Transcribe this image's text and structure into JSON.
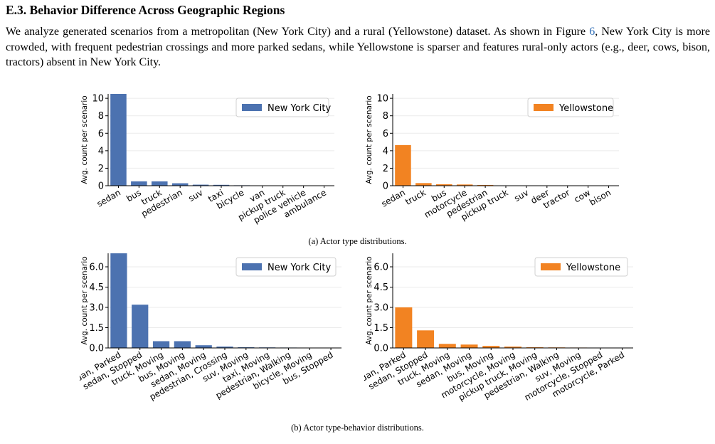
{
  "section": {
    "heading": "E.3. Behavior Difference Across Geographic Regions",
    "paragraph_before": "We analyze generated scenarios from a metropolitan (New York City) and a rural (Yellowstone) dataset. As shown in Figure ",
    "figure_ref": "6",
    "paragraph_after": ", New York City is more crowded, with frequent pedestrian crossings and more parked sedans, while Yellowstone is sparser and features rural-only actors (e.g., deer, cows, bison, tractors) absent in New York City."
  },
  "captions": {
    "a": "(a) Actor type distributions.",
    "b": "(b) Actor type-behavior distributions."
  },
  "colors": {
    "nyc": "#4c72b0",
    "yellowstone": "#f28322"
  },
  "chart_data": [
    {
      "type": "bar",
      "categories": [
        "sedan",
        "bus",
        "truck",
        "pedestrian",
        "suv",
        "taxi",
        "bicycle",
        "van",
        "pickup truck",
        "police vehicle",
        "ambulance"
      ],
      "values": [
        10.5,
        0.5,
        0.5,
        0.28,
        0.12,
        0.1,
        0.05,
        0.04,
        0.01,
        0.01,
        0.01
      ],
      "series_name": "New York City",
      "ylabel": "Avg. count per scenario",
      "ylim": [
        0,
        10.5
      ],
      "yticks": [
        0,
        2,
        4,
        6,
        8,
        10
      ],
      "ytick_labels": [
        "0",
        "2",
        "4",
        "6",
        "8",
        "10"
      ],
      "color": "#4c72b0",
      "legend": "top-right",
      "grid": true
    },
    {
      "type": "bar",
      "categories": [
        "sedan",
        "truck",
        "bus",
        "motorcycle",
        "pedestrian",
        "pickup truck",
        "suv",
        "deer",
        "tractor",
        "cow",
        "bison"
      ],
      "values": [
        4.65,
        0.3,
        0.17,
        0.14,
        0.08,
        0.04,
        0.03,
        0.01,
        0.01,
        0.01,
        0.01
      ],
      "series_name": "Yellowstone",
      "ylabel": "Avg. count per scenario",
      "ylim": [
        0,
        10.5
      ],
      "yticks": [
        0,
        2,
        4,
        6,
        8,
        10
      ],
      "ytick_labels": [
        "0",
        "2",
        "4",
        "6",
        "8",
        "10"
      ],
      "color": "#f28322",
      "legend": "top-right",
      "grid": true
    },
    {
      "type": "bar",
      "categories": [
        "sedan, Parked",
        "sedan, Stopped",
        "truck, Moving",
        "bus, Moving",
        "sedan, Moving",
        "pedestrian, Crossing",
        "suv, Moving",
        "taxi, Moving",
        "pedestrian, Walking",
        "bicycle, Moving",
        "bus, Stopped"
      ],
      "values": [
        7.0,
        3.2,
        0.5,
        0.5,
        0.2,
        0.1,
        0.05,
        0.04,
        0.03,
        0.02,
        0.02
      ],
      "series_name": "New York City",
      "ylabel": "Avg. count per scenario",
      "ylim": [
        0,
        7.0
      ],
      "yticks": [
        0,
        1.5,
        3,
        4.5,
        6
      ],
      "ytick_labels": [
        "0.0",
        "1.5",
        "3.0",
        "4.5",
        "6.0"
      ],
      "color": "#4c72b0",
      "legend": "top-right",
      "grid": true
    },
    {
      "type": "bar",
      "categories": [
        "sedan, Parked",
        "sedan, Stopped",
        "truck, Moving",
        "sedan, Moving",
        "bus, Moving",
        "motorcycle, Moving",
        "pickup truck, Moving",
        "pedestrian, Walking",
        "suv, Moving",
        "motorcycle, Stopped",
        "motorcycle, Parked"
      ],
      "values": [
        3.0,
        1.3,
        0.3,
        0.25,
        0.15,
        0.1,
        0.05,
        0.04,
        0.03,
        0.01,
        0.01
      ],
      "series_name": "Yellowstone",
      "ylabel": "Avg. count per scenario",
      "ylim": [
        0,
        7.0
      ],
      "yticks": [
        0,
        1.5,
        3,
        4.5,
        6
      ],
      "ytick_labels": [
        "0.0",
        "1.5",
        "3.0",
        "4.5",
        "6.0"
      ],
      "color": "#f28322",
      "legend": "top-right",
      "grid": true
    }
  ]
}
